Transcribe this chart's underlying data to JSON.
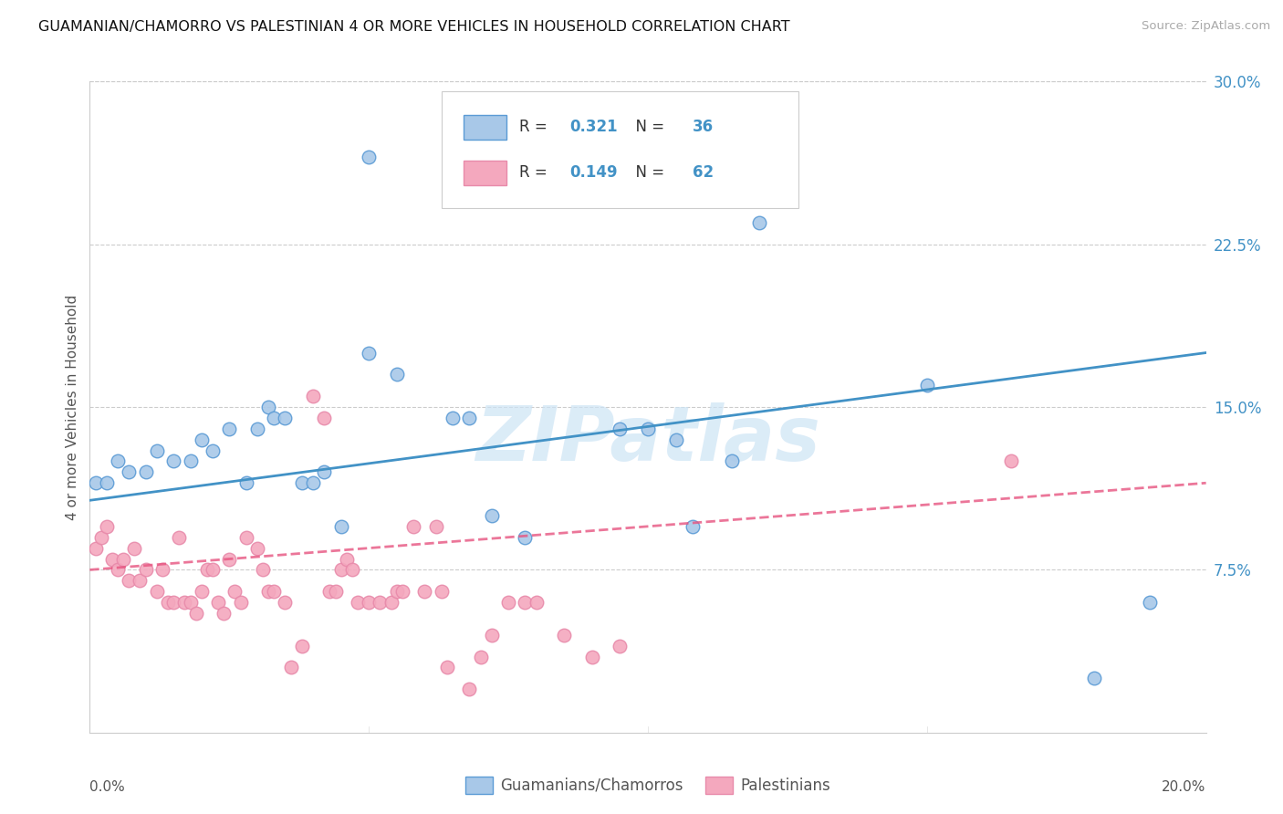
{
  "title": "GUAMANIAN/CHAMORRO VS PALESTINIAN 4 OR MORE VEHICLES IN HOUSEHOLD CORRELATION CHART",
  "source": "Source: ZipAtlas.com",
  "ylabel": "4 or more Vehicles in Household",
  "x_min": 0.0,
  "x_max": 0.2,
  "y_min": 0.0,
  "y_max": 0.3,
  "y_ticks": [
    0.075,
    0.15,
    0.225,
    0.3
  ],
  "y_tick_labels": [
    "7.5%",
    "15.0%",
    "22.5%",
    "30.0%"
  ],
  "x_tick_labels": [
    "0.0%",
    "20.0%"
  ],
  "blue_color": "#4292c6",
  "pink_color": "#e75480",
  "scatter_blue_color": "#a8c8e8",
  "scatter_pink_color": "#f4a8be",
  "blue_edge_color": "#5b9bd5",
  "pink_edge_color": "#e88aaa",
  "blue_points": [
    [
      0.001,
      0.115
    ],
    [
      0.003,
      0.115
    ],
    [
      0.005,
      0.125
    ],
    [
      0.007,
      0.12
    ],
    [
      0.01,
      0.12
    ],
    [
      0.012,
      0.13
    ],
    [
      0.015,
      0.125
    ],
    [
      0.018,
      0.125
    ],
    [
      0.02,
      0.135
    ],
    [
      0.022,
      0.13
    ],
    [
      0.025,
      0.14
    ],
    [
      0.028,
      0.115
    ],
    [
      0.03,
      0.14
    ],
    [
      0.032,
      0.15
    ],
    [
      0.033,
      0.145
    ],
    [
      0.035,
      0.145
    ],
    [
      0.038,
      0.115
    ],
    [
      0.04,
      0.115
    ],
    [
      0.042,
      0.12
    ],
    [
      0.045,
      0.095
    ],
    [
      0.05,
      0.175
    ],
    [
      0.055,
      0.165
    ],
    [
      0.065,
      0.145
    ],
    [
      0.068,
      0.145
    ],
    [
      0.072,
      0.1
    ],
    [
      0.078,
      0.09
    ],
    [
      0.095,
      0.14
    ],
    [
      0.1,
      0.14
    ],
    [
      0.105,
      0.135
    ],
    [
      0.108,
      0.095
    ],
    [
      0.115,
      0.125
    ],
    [
      0.12,
      0.235
    ],
    [
      0.05,
      0.265
    ],
    [
      0.15,
      0.16
    ],
    [
      0.18,
      0.025
    ],
    [
      0.19,
      0.06
    ]
  ],
  "pink_points": [
    [
      0.001,
      0.085
    ],
    [
      0.002,
      0.09
    ],
    [
      0.003,
      0.095
    ],
    [
      0.004,
      0.08
    ],
    [
      0.005,
      0.075
    ],
    [
      0.006,
      0.08
    ],
    [
      0.007,
      0.07
    ],
    [
      0.008,
      0.085
    ],
    [
      0.009,
      0.07
    ],
    [
      0.01,
      0.075
    ],
    [
      0.012,
      0.065
    ],
    [
      0.013,
      0.075
    ],
    [
      0.014,
      0.06
    ],
    [
      0.015,
      0.06
    ],
    [
      0.016,
      0.09
    ],
    [
      0.017,
      0.06
    ],
    [
      0.018,
      0.06
    ],
    [
      0.019,
      0.055
    ],
    [
      0.02,
      0.065
    ],
    [
      0.021,
      0.075
    ],
    [
      0.022,
      0.075
    ],
    [
      0.023,
      0.06
    ],
    [
      0.024,
      0.055
    ],
    [
      0.025,
      0.08
    ],
    [
      0.026,
      0.065
    ],
    [
      0.027,
      0.06
    ],
    [
      0.028,
      0.09
    ],
    [
      0.03,
      0.085
    ],
    [
      0.031,
      0.075
    ],
    [
      0.032,
      0.065
    ],
    [
      0.033,
      0.065
    ],
    [
      0.035,
      0.06
    ],
    [
      0.036,
      0.03
    ],
    [
      0.038,
      0.04
    ],
    [
      0.04,
      0.155
    ],
    [
      0.042,
      0.145
    ],
    [
      0.043,
      0.065
    ],
    [
      0.044,
      0.065
    ],
    [
      0.045,
      0.075
    ],
    [
      0.046,
      0.08
    ],
    [
      0.047,
      0.075
    ],
    [
      0.048,
      0.06
    ],
    [
      0.05,
      0.06
    ],
    [
      0.052,
      0.06
    ],
    [
      0.054,
      0.06
    ],
    [
      0.055,
      0.065
    ],
    [
      0.056,
      0.065
    ],
    [
      0.058,
      0.095
    ],
    [
      0.06,
      0.065
    ],
    [
      0.062,
      0.095
    ],
    [
      0.063,
      0.065
    ],
    [
      0.064,
      0.03
    ],
    [
      0.068,
      0.02
    ],
    [
      0.07,
      0.035
    ],
    [
      0.072,
      0.045
    ],
    [
      0.075,
      0.06
    ],
    [
      0.078,
      0.06
    ],
    [
      0.08,
      0.06
    ],
    [
      0.085,
      0.045
    ],
    [
      0.09,
      0.035
    ],
    [
      0.095,
      0.04
    ],
    [
      0.165,
      0.125
    ]
  ],
  "blue_line": {
    "x0": 0.0,
    "y0": 0.107,
    "x1": 0.2,
    "y1": 0.175
  },
  "pink_line": {
    "x0": 0.0,
    "y0": 0.075,
    "x1": 0.2,
    "y1": 0.115
  },
  "legend_R1": "0.321",
  "legend_N1": "36",
  "legend_R2": "0.149",
  "legend_N2": "62",
  "legend_label1": "Guamanians/Chamorros",
  "legend_label2": "Palestinians",
  "watermark_text": "ZIPatlas",
  "watermark_color": "#cde4f5",
  "background_color": "#ffffff",
  "grid_color": "#cccccc",
  "text_color_dark": "#333333",
  "text_color_blue": "#4292c6",
  "text_color_axis": "#555555"
}
